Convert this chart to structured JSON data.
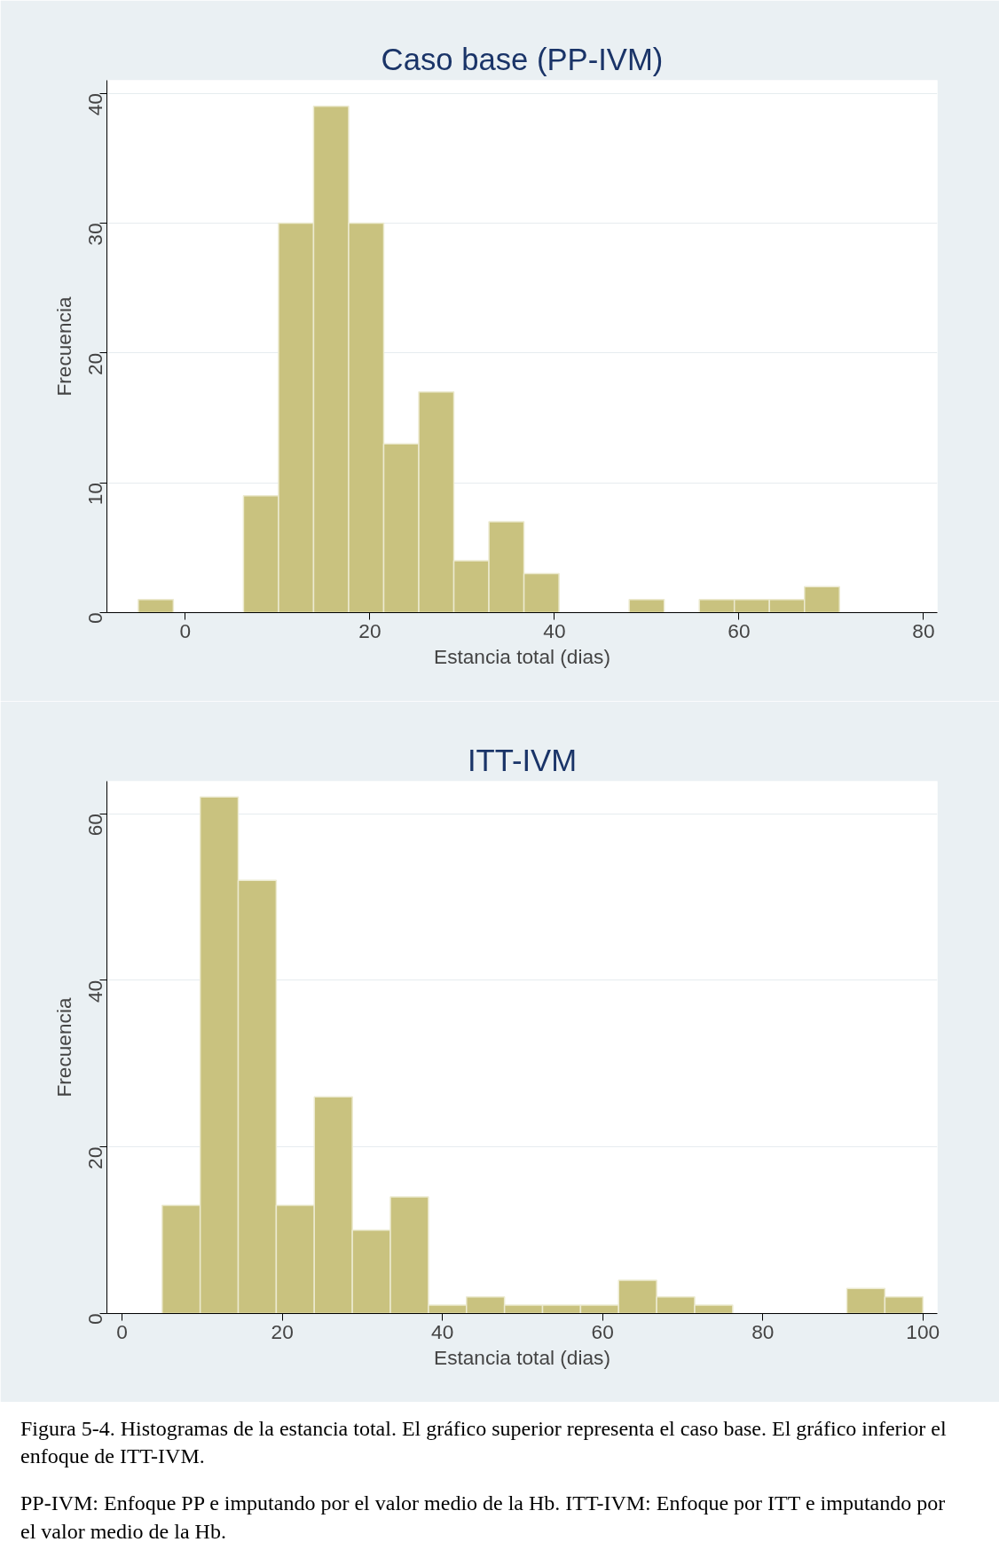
{
  "chart_data": [
    {
      "type": "histogram",
      "title": "Caso base (PP-IVM)",
      "xlabel": "Estancia total (dias)",
      "ylabel": "Frecuencia",
      "color": "#c9c27f",
      "bins": [
        -5.1,
        -1.3,
        2.5,
        6.3,
        10.1,
        13.9,
        17.7,
        21.5,
        25.3,
        29.1,
        32.9,
        36.7,
        40.5,
        44.3,
        48.1,
        51.9,
        55.7,
        59.5,
        63.3,
        67.1,
        70.9
      ],
      "values": [
        1,
        0,
        0,
        9,
        30,
        39,
        30,
        13,
        17,
        4,
        7,
        3,
        0,
        0,
        1,
        0,
        1,
        1,
        1,
        2
      ],
      "xlim": [
        -8.5,
        81.5
      ],
      "xticks": [
        0,
        20,
        40,
        60,
        80
      ],
      "ylim": [
        0,
        41
      ],
      "yticks": [
        0,
        10,
        20,
        30,
        40
      ],
      "grid": "y"
    },
    {
      "type": "histogram",
      "title": "ITT-IVM",
      "xlabel": "Estancia total (dias)",
      "ylabel": "Frecuencia",
      "color": "#c9c27f",
      "bins": [
        5,
        9.75,
        14.5,
        19.25,
        24,
        28.75,
        33.5,
        38.25,
        43,
        47.75,
        52.5,
        57.25,
        62,
        66.75,
        71.5,
        76.25,
        81,
        85.75,
        90.5,
        95.25,
        100
      ],
      "values": [
        13,
        62,
        52,
        13,
        26,
        10,
        14,
        1,
        2,
        1,
        1,
        1,
        4,
        2,
        1,
        0,
        0,
        0,
        3,
        2
      ],
      "xlim": [
        -1.9,
        101.8
      ],
      "xticks": [
        0,
        20,
        40,
        60,
        80,
        100
      ],
      "ylim": [
        0,
        63.9
      ],
      "yticks": [
        0,
        20,
        40,
        60
      ],
      "grid": "y",
      "annotations": [
        "Figura 5-4. Histogramas de la estancia total. El gráfico superior representa el caso base. El gráfico inferior el enfoque de ITT-IVM.",
        "PP-IVM: Enfoque PP e imputando por el valor medio de la Hb. ITT-IVM: Enfoque por ITT e imputando por el valor medio de la Hb."
      ]
    }
  ]
}
